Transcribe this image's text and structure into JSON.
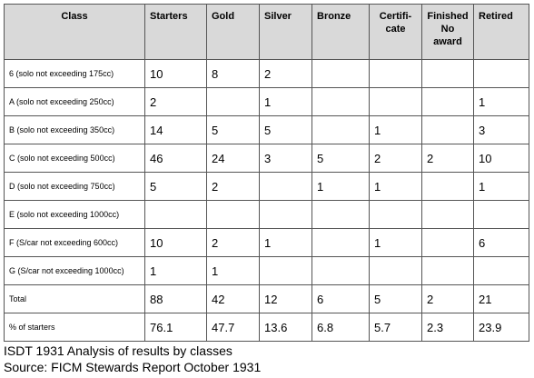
{
  "table": {
    "headers": [
      "Class",
      "Starters",
      "Gold",
      "Silver",
      "Bronze",
      "Certifi-\ncate",
      "Finished\nNo\naward",
      "Retired"
    ],
    "rows": [
      [
        "6 (solo not exceeding 175cc)",
        "10",
        "8",
        "2",
        "",
        "",
        "",
        ""
      ],
      [
        "A (solo not exceeding 250cc)",
        "2",
        "",
        "1",
        "",
        "",
        "",
        "1"
      ],
      [
        "B (solo not exceeding 350cc)",
        "14",
        "5",
        "5",
        "",
        "1",
        "",
        "3"
      ],
      [
        "C (solo not exceeding 500cc)",
        "46",
        "24",
        "3",
        "5",
        "2",
        "2",
        "10"
      ],
      [
        "D (solo not exceeding 750cc)",
        "5",
        "2",
        "",
        "1",
        "1",
        "",
        "1"
      ],
      [
        "E (solo not exceeding 1000cc)",
        "",
        "",
        "",
        "",
        "",
        "",
        ""
      ],
      [
        "F (S/car not exceeding 600cc)",
        "10",
        "2",
        "1",
        "",
        "1",
        "",
        "6"
      ],
      [
        "G (S/car not exceeding 1000cc)",
        "1",
        "1",
        "",
        "",
        "",
        "",
        ""
      ],
      [
        "Total",
        "88",
        "42",
        "12",
        "6",
        "5",
        "2",
        "21"
      ],
      [
        "% of starters",
        "76.1",
        "47.7",
        "13.6",
        "6.8",
        "5.7",
        "2.3",
        "23.9"
      ]
    ]
  },
  "caption": {
    "line1": "ISDT 1931 Analysis of results by classes",
    "line2": "Source: FICM Stewards Report October 1931"
  },
  "colors": {
    "header_bg": "#d9d9d9",
    "border": "#555555"
  }
}
